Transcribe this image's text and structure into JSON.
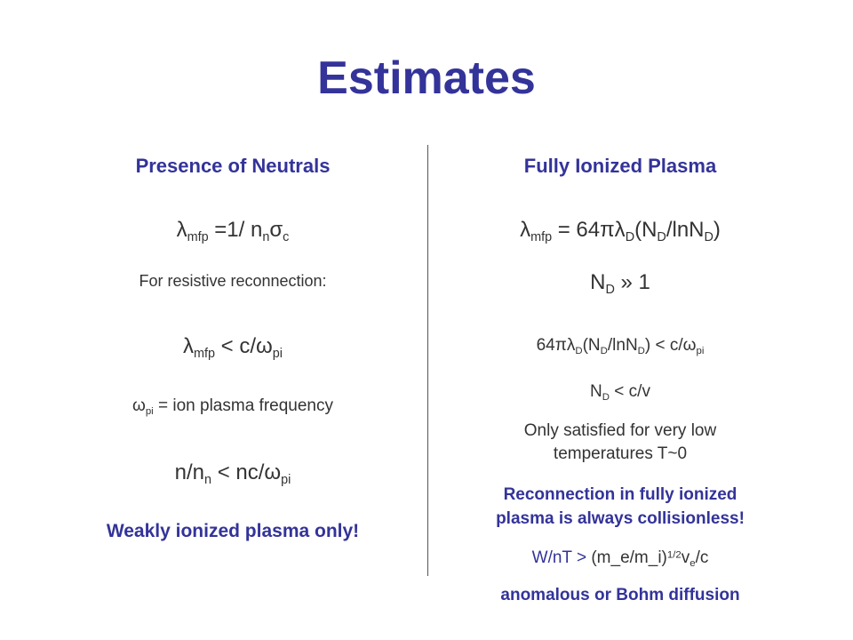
{
  "slide": {
    "title": "Estimates"
  },
  "left": {
    "heading": "Presence of Neutrals",
    "mfp_lambda": "λ",
    "mfp_sub": "mfp",
    "mfp_eq": " =1/ n",
    "mfp_n_sub": "n",
    "mfp_sigma": "σ",
    "mfp_c_sub": "c",
    "resistive": "For resistive reconnection:",
    "cond_lambda": "λ",
    "cond_sub": "mfp",
    "cond_rel": " < c/",
    "cond_omega": "ω",
    "cond_pi_sub": "pi",
    "omega_symbol": "ω",
    "omega_sub": "pi",
    "omega_text": " = ion plasma frequency",
    "ratio_text": "n/n",
    "ratio_n_sub": "n",
    "ratio_rel": " < nc/",
    "ratio_omega": "ω",
    "ratio_pi_sub": "pi",
    "conclusion": "Weakly ionized plasma only!"
  },
  "right": {
    "heading": "Fully Ionized Plasma",
    "mfp_lambda": "λ",
    "mfp_sub": "mfp",
    "mfp_eq": " = 64πλ",
    "mfp_D_sub": "D",
    "mfp_paren": "(N",
    "mfp_D_sub2": "D",
    "mfp_ln": "/lnN",
    "mfp_D_sub3": "D",
    "mfp_close": ")",
    "nd_N": "N",
    "nd_D_sub": "D",
    "nd_rel": " » 1",
    "cond_prefix": "64πλ",
    "cond_D_sub": "D",
    "cond_paren": "(N",
    "cond_D_sub2": "D",
    "cond_ln": "/lnN",
    "cond_D_sub3": "D",
    "cond_rel": ") < c/",
    "cond_omega": "ω",
    "cond_pi_sub": "pi",
    "ndcv_N": "N",
    "ndcv_D_sub": "D",
    "ndcv_rel": " < c/v",
    "satisfied_1": "Only satisfied for very low",
    "satisfied_2": "temperatures T~0",
    "collisionless_1": "Reconnection in fully ionized",
    "collisionless_2": "plasma is always collisionless!",
    "wnt_a": "W/nT > ",
    "wnt_b": "(m_e/m_i)",
    "wnt_sup": "1/2",
    "wnt_v": "v",
    "wnt_e_sub": "e",
    "wnt_c": "/c",
    "diffusion": "anomalous or Bohm diffusion"
  }
}
